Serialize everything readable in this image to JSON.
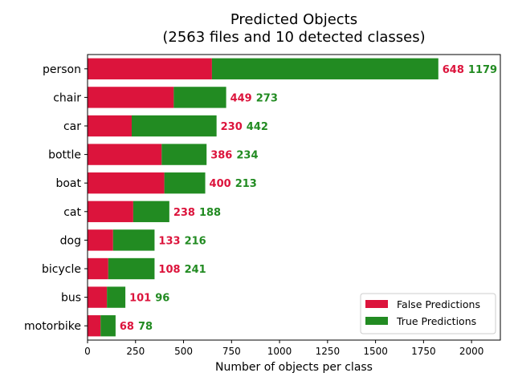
{
  "chart_data": {
    "type": "bar",
    "orientation": "horizontal",
    "stacked": true,
    "title": "Predicted Objects",
    "subtitle": "(2563 files and 10 detected classes)",
    "xlabel": "Number of objects per class",
    "ylabel": "",
    "categories": [
      "person",
      "chair",
      "car",
      "bottle",
      "boat",
      "cat",
      "dog",
      "bicycle",
      "bus",
      "motorbike"
    ],
    "series": [
      {
        "name": "False Predictions",
        "color": "#dc143c",
        "values": [
          648,
          449,
          230,
          386,
          400,
          238,
          133,
          108,
          101,
          68
        ]
      },
      {
        "name": "True Predictions",
        "color": "#228b22",
        "values": [
          1179,
          273,
          442,
          234,
          213,
          188,
          216,
          241,
          96,
          78
        ]
      }
    ],
    "xlim": [
      0,
      2150
    ],
    "xticks": [
      "0",
      "250",
      "500",
      "750",
      "1000",
      "1250",
      "1500",
      "1750",
      "2000"
    ],
    "grid": false,
    "legend_position": "lower right"
  }
}
